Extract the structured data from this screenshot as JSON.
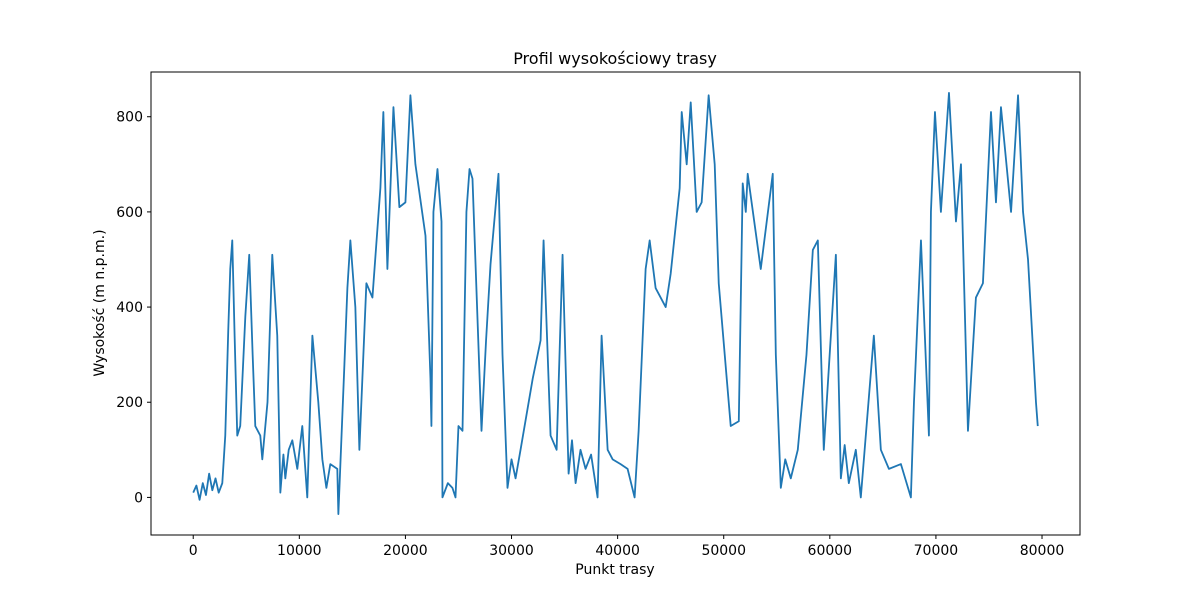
{
  "chart_data": {
    "type": "line",
    "title": "Profil wysokościowy trasy",
    "x_label": "Punkt trasy",
    "y_label": "Wysokość (m n.p.m.)",
    "xlim": [
      -3980,
      83580
    ],
    "ylim": [
      -79,
      894
    ],
    "xticks": [
      0,
      10000,
      20000,
      30000,
      40000,
      50000,
      60000,
      70000,
      80000
    ],
    "yticks": [
      0,
      200,
      400,
      600,
      800
    ],
    "grid": false,
    "series": [
      {
        "color": "#1f77b4",
        "x": [
          0,
          300,
          600,
          900,
          1200,
          1500,
          1800,
          2100,
          2400,
          2740,
          3020,
          3300,
          3490,
          3680,
          3900,
          4150,
          4430,
          4910,
          5280,
          5600,
          5850,
          6320,
          6510,
          7000,
          7450,
          7920,
          8210,
          8500,
          8680,
          9000,
          9340,
          9810,
          10280,
          10750,
          11230,
          11790,
          12170,
          12550,
          12920,
          13580,
          13680,
          14250,
          14530,
          14810,
          15280,
          15660,
          16320,
          16890,
          17640,
          17920,
          18300,
          18870,
          19430,
          20000,
          20470,
          20940,
          21890,
          22360,
          22450,
          22640,
          23020,
          23400,
          23490,
          24000,
          24430,
          24720,
          25000,
          25380,
          25750,
          26040,
          26320,
          27170,
          27600,
          28020,
          28770,
          29150,
          29620,
          30000,
          30380,
          30850,
          32000,
          32740,
          33020,
          33680,
          34250,
          34810,
          35380,
          35700,
          36040,
          36500,
          36980,
          37500,
          38110,
          38490,
          39060,
          39530,
          40280,
          40940,
          41600,
          41980,
          42640,
          43020,
          43580,
          44530,
          45000,
          45850,
          46040,
          46510,
          46890,
          47450,
          47920,
          48580,
          49150,
          49530,
          50660,
          51420,
          51790,
          52080,
          52260,
          53490,
          54620,
          54910,
          55380,
          55800,
          56320,
          56980,
          57800,
          58400,
          58870,
          59430,
          60570,
          61040,
          61400,
          61790,
          62450,
          62920,
          64150,
          64810,
          65570,
          66700,
          67640,
          67930,
          68590,
          69340,
          69530,
          69910,
          70470,
          71230,
          71890,
          72360,
          73020,
          73770,
          74430,
          75190,
          75660,
          76130,
          77080,
          77740,
          78210,
          78680,
          79430,
          79600
        ],
        "values": [
          10,
          25,
          -5,
          30,
          5,
          50,
          15,
          40,
          10,
          30,
          130,
          350,
          480,
          540,
          340,
          130,
          150,
          380,
          510,
          300,
          150,
          130,
          80,
          200,
          510,
          340,
          10,
          90,
          40,
          100,
          120,
          60,
          150,
          0,
          340,
          200,
          80,
          20,
          70,
          60,
          -35,
          280,
          440,
          540,
          400,
          100,
          450,
          420,
          650,
          810,
          480,
          820,
          610,
          620,
          845,
          700,
          550,
          250,
          150,
          600,
          690,
          580,
          0,
          30,
          20,
          0,
          150,
          140,
          600,
          690,
          670,
          140,
          330,
          490,
          680,
          300,
          20,
          80,
          40,
          100,
          250,
          330,
          540,
          130,
          100,
          510,
          50,
          120,
          30,
          100,
          60,
          90,
          0,
          340,
          100,
          80,
          70,
          60,
          0,
          140,
          480,
          540,
          440,
          400,
          470,
          650,
          810,
          700,
          830,
          600,
          620,
          845,
          700,
          450,
          150,
          160,
          660,
          600,
          680,
          480,
          680,
          300,
          20,
          80,
          40,
          100,
          300,
          520,
          540,
          100,
          510,
          40,
          110,
          30,
          100,
          0,
          340,
          100,
          60,
          70,
          0,
          200,
          540,
          130,
          600,
          810,
          600,
          850,
          580,
          700,
          140,
          420,
          450,
          810,
          620,
          820,
          600,
          845,
          600,
          500,
          200,
          150
        ]
      }
    ]
  }
}
